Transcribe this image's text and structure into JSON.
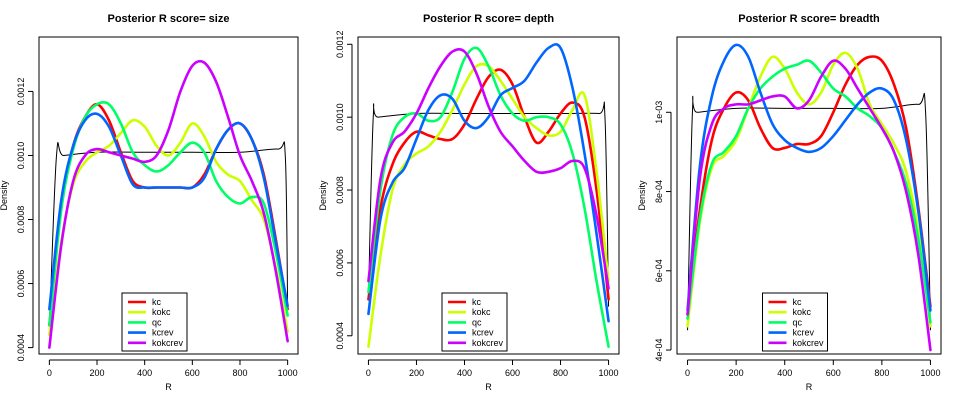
{
  "chart_data": [
    {
      "type": "line",
      "title": "Posterior R  score= size",
      "xlabel": "R",
      "ylabel": "Density",
      "xlim": [
        0,
        1000
      ],
      "ylim": [
        0.00038,
        0.00137
      ],
      "xticks": [
        0,
        200,
        400,
        600,
        800,
        1000
      ],
      "xtick_labels": [
        "0",
        "200",
        "400",
        "600",
        "800",
        "1000"
      ],
      "yticks": [
        0.0004,
        0.0006,
        0.0008,
        0.001,
        0.0012
      ],
      "ytick_labels": [
        "0.0004",
        "0.0006",
        "0.0008",
        "0.0010",
        "0.0012"
      ],
      "legend_position": "bottom-center",
      "reference": {
        "x": [
          0,
          30,
          60,
          200,
          400,
          600,
          800,
          960,
          990,
          1000
        ],
        "y": [
          0.00045,
          0.001,
          0.001,
          0.00101,
          0.00101,
          0.00101,
          0.00101,
          0.00102,
          0.001,
          0.00052
        ]
      },
      "series": [
        {
          "name": "kc",
          "color": "#ff0000",
          "x": [
            0,
            50,
            100,
            150,
            200,
            250,
            300,
            350,
            400,
            450,
            500,
            550,
            600,
            650,
            700,
            750,
            800,
            850,
            900,
            950,
            1000
          ],
          "y": [
            0.00047,
            0.00085,
            0.00103,
            0.00112,
            0.00116,
            0.00111,
            0.00101,
            0.00092,
            0.0009,
            0.0009,
            0.0009,
            0.0009,
            0.0009,
            0.00094,
            0.00102,
            0.00108,
            0.0011,
            0.00105,
            0.00094,
            0.00074,
            0.00052
          ]
        },
        {
          "name": "kokc",
          "color": "#ccff00",
          "x": [
            0,
            50,
            100,
            150,
            200,
            250,
            300,
            350,
            400,
            450,
            500,
            550,
            600,
            650,
            700,
            750,
            800,
            850,
            900,
            950,
            1000
          ],
          "y": [
            0.00044,
            0.00073,
            0.00091,
            0.00098,
            0.00101,
            0.00103,
            0.00107,
            0.00111,
            0.00109,
            0.00103,
            0.001,
            0.00104,
            0.0011,
            0.00106,
            0.00098,
            0.00094,
            0.00092,
            0.00086,
            0.0008,
            0.00065,
            0.00045
          ]
        },
        {
          "name": "qc",
          "color": "#00ff66",
          "x": [
            0,
            50,
            100,
            150,
            200,
            250,
            300,
            350,
            400,
            450,
            500,
            550,
            600,
            650,
            700,
            750,
            800,
            850,
            900,
            950,
            1000
          ],
          "y": [
            0.00047,
            0.00083,
            0.00102,
            0.00112,
            0.00116,
            0.00116,
            0.0011,
            0.00101,
            0.00097,
            0.00095,
            0.00097,
            0.00101,
            0.00104,
            0.00101,
            0.00092,
            0.00087,
            0.00085,
            0.00087,
            0.00085,
            0.0007,
            0.0005
          ]
        },
        {
          "name": "kcrev",
          "color": "#0066ff",
          "x": [
            0,
            50,
            100,
            150,
            200,
            250,
            300,
            350,
            400,
            450,
            500,
            550,
            600,
            650,
            700,
            750,
            800,
            850,
            900,
            950,
            1000
          ],
          "y": [
            0.00052,
            0.00086,
            0.00103,
            0.00111,
            0.00113,
            0.00109,
            0.001,
            0.00091,
            0.0009,
            0.0009,
            0.0009,
            0.0009,
            0.0009,
            0.00093,
            0.00102,
            0.00108,
            0.0011,
            0.00105,
            0.00093,
            0.00073,
            0.00053
          ]
        },
        {
          "name": "kokcrev",
          "color": "#cc00ff",
          "x": [
            0,
            50,
            100,
            150,
            200,
            250,
            300,
            350,
            400,
            450,
            500,
            550,
            600,
            650,
            700,
            750,
            800,
            850,
            900,
            950,
            1000
          ],
          "y": [
            0.0004,
            0.00072,
            0.00092,
            0.001,
            0.00102,
            0.00101,
            0.001,
            0.00099,
            0.00098,
            0.001,
            0.00108,
            0.0012,
            0.00128,
            0.00129,
            0.00123,
            0.00112,
            0.001,
            0.00092,
            0.00082,
            0.00064,
            0.00042
          ]
        }
      ]
    },
    {
      "type": "line",
      "title": "Posterior R  score= depth",
      "xlabel": "R",
      "ylabel": "Density",
      "xlim": [
        0,
        1000
      ],
      "ylim": [
        0.00035,
        0.00122
      ],
      "xticks": [
        0,
        200,
        400,
        600,
        800,
        1000
      ],
      "xtick_labels": [
        "0",
        "200",
        "400",
        "600",
        "800",
        "1000"
      ],
      "yticks": [
        0.0004,
        0.0006,
        0.0008,
        0.001,
        0.0012
      ],
      "ytick_labels": [
        "0.0004",
        "0.0006",
        "0.0008",
        "0.0010",
        "0.0012"
      ],
      "legend_position": "bottom-center",
      "reference": {
        "x": [
          0,
          20,
          40,
          200,
          400,
          600,
          800,
          960,
          985,
          1000
        ],
        "y": [
          0.0005,
          0.001,
          0.001,
          0.00101,
          0.00101,
          0.00101,
          0.00101,
          0.00101,
          0.001,
          0.00048
        ]
      },
      "series": [
        {
          "name": "kc",
          "color": "#ff0000",
          "x": [
            0,
            50,
            100,
            150,
            200,
            250,
            300,
            350,
            400,
            450,
            500,
            550,
            600,
            650,
            700,
            750,
            800,
            850,
            900,
            950,
            1000
          ],
          "y": [
            0.0005,
            0.00075,
            0.00087,
            0.00093,
            0.00096,
            0.00095,
            0.00094,
            0.00094,
            0.00098,
            0.00105,
            0.00111,
            0.00113,
            0.00109,
            0.001,
            0.00093,
            0.00096,
            0.00101,
            0.00104,
            0.001,
            0.0008,
            0.0005
          ]
        },
        {
          "name": "kokc",
          "color": "#ccff00",
          "x": [
            0,
            50,
            100,
            150,
            200,
            250,
            300,
            350,
            400,
            450,
            500,
            550,
            600,
            650,
            700,
            750,
            800,
            850,
            900,
            950,
            1000
          ],
          "y": [
            0.00037,
            0.00062,
            0.0008,
            0.00087,
            0.0009,
            0.00092,
            0.00096,
            0.00102,
            0.00109,
            0.00114,
            0.00114,
            0.0011,
            0.00105,
            0.001,
            0.00097,
            0.00095,
            0.00096,
            0.00102,
            0.00106,
            0.00085,
            0.00055
          ]
        },
        {
          "name": "qc",
          "color": "#00ff66",
          "x": [
            0,
            50,
            100,
            150,
            200,
            250,
            300,
            350,
            400,
            450,
            500,
            550,
            600,
            650,
            700,
            750,
            800,
            850,
            900,
            950,
            1000
          ],
          "y": [
            0.00052,
            0.0008,
            0.00095,
            0.001,
            0.00101,
            0.00099,
            0.001,
            0.00107,
            0.00116,
            0.00119,
            0.00114,
            0.00106,
            0.00101,
            0.00099,
            0.001,
            0.001,
            0.00098,
            0.0009,
            0.00075,
            0.00055,
            0.00037
          ]
        },
        {
          "name": "kcrev",
          "color": "#0066ff",
          "x": [
            0,
            50,
            100,
            150,
            200,
            250,
            300,
            350,
            400,
            450,
            500,
            550,
            600,
            650,
            700,
            750,
            800,
            850,
            900,
            950,
            1000
          ],
          "y": [
            0.00046,
            0.00072,
            0.00082,
            0.00086,
            0.00094,
            0.00102,
            0.00106,
            0.00105,
            0.00099,
            0.00097,
            0.001,
            0.00106,
            0.00108,
            0.0011,
            0.00115,
            0.00119,
            0.00119,
            0.00108,
            0.0009,
            0.00068,
            0.00044
          ]
        },
        {
          "name": "kokcrev",
          "color": "#cc00ff",
          "x": [
            0,
            50,
            100,
            150,
            200,
            250,
            300,
            350,
            400,
            450,
            500,
            550,
            600,
            650,
            700,
            750,
            800,
            850,
            900,
            950,
            1000
          ],
          "y": [
            0.00055,
            0.00083,
            0.00093,
            0.00096,
            0.00101,
            0.00108,
            0.00114,
            0.00118,
            0.00118,
            0.00112,
            0.00103,
            0.00096,
            0.00092,
            0.00088,
            0.00085,
            0.00085,
            0.00086,
            0.00088,
            0.00086,
            0.00073,
            0.00053
          ]
        }
      ]
    },
    {
      "type": "line",
      "title": "Posterior R  score= breadth",
      "xlabel": "R",
      "ylabel": "Density",
      "xlim": [
        0,
        1000
      ],
      "ylim": [
        0.00039,
        0.00119
      ],
      "xticks": [
        0,
        200,
        400,
        600,
        800,
        1000
      ],
      "xtick_labels": [
        "0",
        "200",
        "400",
        "600",
        "800",
        "1000"
      ],
      "yticks": [
        0.0004,
        0.0006,
        0.0008,
        0.001
      ],
      "ytick_labels": [
        "4e-04",
        "6e-04",
        "8e-04",
        "1e-03"
      ],
      "legend_position": "bottom-center",
      "reference": {
        "x": [
          0,
          20,
          40,
          200,
          400,
          600,
          800,
          950,
          980,
          1000
        ],
        "y": [
          0.00045,
          0.001,
          0.001,
          0.00101,
          0.00101,
          0.00101,
          0.00101,
          0.00102,
          0.001,
          0.00045
        ]
      },
      "series": [
        {
          "name": "kc",
          "color": "#ff0000",
          "x": [
            0,
            50,
            100,
            150,
            200,
            250,
            300,
            350,
            400,
            450,
            500,
            550,
            600,
            650,
            700,
            750,
            800,
            850,
            900,
            950,
            1000
          ],
          "y": [
            0.00049,
            0.00075,
            0.00093,
            0.00101,
            0.00105,
            0.00103,
            0.00096,
            0.00091,
            0.00091,
            0.00092,
            0.00092,
            0.00094,
            0.001,
            0.00107,
            0.00112,
            0.00114,
            0.00113,
            0.00107,
            0.00096,
            0.00076,
            0.00051
          ]
        },
        {
          "name": "kokc",
          "color": "#ccff00",
          "x": [
            0,
            50,
            100,
            150,
            200,
            250,
            300,
            350,
            400,
            450,
            500,
            550,
            600,
            650,
            700,
            750,
            800,
            850,
            900,
            950,
            1000
          ],
          "y": [
            0.00046,
            0.00072,
            0.00086,
            0.00089,
            0.00093,
            0.00101,
            0.00109,
            0.00114,
            0.00111,
            0.00105,
            0.00102,
            0.00105,
            0.00112,
            0.00115,
            0.00111,
            0.00102,
            0.00097,
            0.00092,
            0.00085,
            0.0007,
            0.00046
          ]
        },
        {
          "name": "qc",
          "color": "#00ff66",
          "x": [
            0,
            50,
            100,
            150,
            200,
            250,
            300,
            350,
            400,
            450,
            500,
            550,
            600,
            650,
            700,
            750,
            800,
            850,
            900,
            950,
            1000
          ],
          "y": [
            0.00048,
            0.00073,
            0.00087,
            0.0009,
            0.00094,
            0.00101,
            0.00106,
            0.00109,
            0.00111,
            0.00112,
            0.00113,
            0.0011,
            0.00106,
            0.00104,
            0.00101,
            0.00099,
            0.00096,
            0.0009,
            0.00082,
            0.00068,
            0.00047
          ]
        },
        {
          "name": "kcrev",
          "color": "#0066ff",
          "x": [
            0,
            50,
            100,
            150,
            200,
            250,
            300,
            350,
            400,
            450,
            500,
            550,
            600,
            650,
            700,
            750,
            800,
            850,
            900,
            950,
            1000
          ],
          "y": [
            0.0005,
            0.00086,
            0.00104,
            0.00113,
            0.00117,
            0.00114,
            0.00105,
            0.00097,
            0.00093,
            0.00091,
            0.0009,
            0.00091,
            0.00094,
            0.00098,
            0.00102,
            0.00105,
            0.00106,
            0.00103,
            0.00093,
            0.00075,
            0.0005
          ]
        },
        {
          "name": "kokcrev",
          "color": "#cc00ff",
          "x": [
            0,
            50,
            100,
            150,
            200,
            250,
            300,
            350,
            400,
            450,
            500,
            550,
            600,
            650,
            700,
            750,
            800,
            850,
            900,
            950,
            1000
          ],
          "y": [
            0.00049,
            0.00083,
            0.00097,
            0.00101,
            0.00102,
            0.00102,
            0.00103,
            0.00104,
            0.00104,
            0.00101,
            0.00103,
            0.00109,
            0.00113,
            0.00111,
            0.00106,
            0.00101,
            0.00096,
            0.0009,
            0.0008,
            0.00064,
            0.0004
          ]
        }
      ]
    }
  ]
}
